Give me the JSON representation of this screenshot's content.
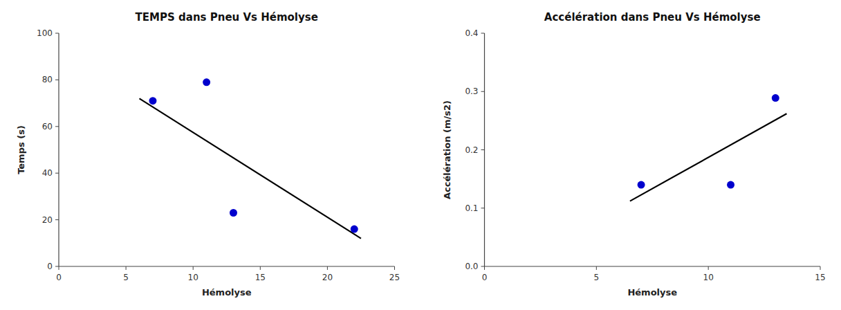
{
  "chart_data": [
    {
      "type": "scatter",
      "title": "TEMPS dans Pneu Vs Hémolyse",
      "x_label": "Hémolyse",
      "y_label": "Temps (s)",
      "series": [
        {
          "type": "line",
          "color": "#000000",
          "x": [
            6.0,
            22.5
          ],
          "values": [
            72.0,
            12.0
          ]
        },
        {
          "type": "scatter",
          "color": "#0000CD",
          "x": [
            7,
            11,
            13,
            22
          ],
          "values": [
            71,
            79,
            23,
            16
          ]
        }
      ],
      "xlim": [
        0,
        25
      ],
      "ylim": [
        0,
        100
      ],
      "xticks": [
        0,
        5,
        10,
        15,
        20,
        25
      ],
      "yticks": [
        0,
        20,
        40,
        60,
        80,
        100
      ],
      "grid": false
    },
    {
      "type": "scatter",
      "title": "Accélération dans Pneu Vs Hémolyse",
      "x_label": "Hémolyse",
      "y_label": "Accélération (m/s2)",
      "series": [
        {
          "type": "line",
          "color": "#000000",
          "x": [
            6.5,
            13.5
          ],
          "values": [
            0.112,
            0.262
          ]
        },
        {
          "type": "scatter",
          "color": "#0000CD",
          "x": [
            7,
            11,
            13
          ],
          "values": [
            0.14,
            0.14,
            0.289
          ]
        }
      ],
      "xlim": [
        0,
        15
      ],
      "ylim": [
        0.0,
        0.4
      ],
      "xticks": [
        0,
        5,
        10,
        15
      ],
      "yticks": [
        {
          "value": 0.0,
          "label": "0.0"
        },
        0.1,
        0.2,
        0.3,
        0.4
      ],
      "grid": false
    }
  ]
}
